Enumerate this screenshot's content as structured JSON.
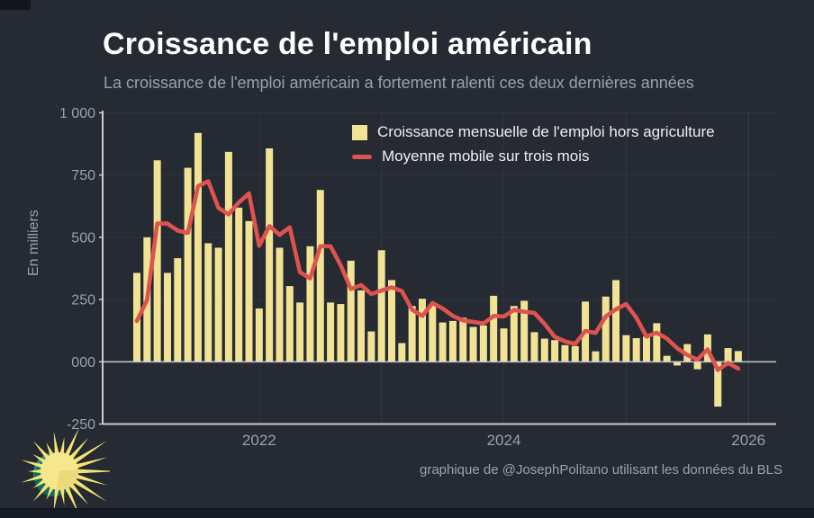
{
  "header": {
    "title": "Croissance de l'emploi américain",
    "subtitle": "La croissance de l'emploi américain a fortement ralenti ces deux dernières années"
  },
  "legend": {
    "bar_label": "Croissance mensuelle de l'emploi hors agriculture",
    "line_label": "Moyenne mobile sur trois mois"
  },
  "footer": {
    "credit": "graphique de @JosephPolitano utilisant les données du BLS"
  },
  "colors": {
    "background": "#252a33",
    "bar": "#f2e394",
    "line": "#df534f",
    "axis": "#c9ccd1",
    "zero_line": "#c9ccd1",
    "gridline": "#2f3440",
    "gridline_2026": "#3a404d",
    "tick_text": "#99a1ad",
    "title_text": "#ffffff",
    "subtitle_text": "#9ba1ac",
    "sun_yellow": "#f6e78c",
    "sun_ray": "#f4e372",
    "sun_shade": "#ebd678",
    "sun_teal": "#1b9185"
  },
  "icons": {
    "logo": "sun-logo"
  },
  "chart_data": {
    "type": "bar",
    "overlay": "line",
    "y_axis_label": "En milliers",
    "ylim": [
      -250,
      1000
    ],
    "y_ticks": [
      {
        "value": 1000,
        "label": "1 000"
      },
      {
        "value": 750,
        "label": "750"
      },
      {
        "value": 500,
        "label": "500"
      },
      {
        "value": 250,
        "label": "250"
      },
      {
        "value": 0,
        "label": "000"
      },
      {
        "value": -250,
        "label": "-250"
      }
    ],
    "x_ticks": [
      {
        "month_index": 12,
        "label": "2022"
      },
      {
        "month_index": 36,
        "label": "2024"
      },
      {
        "month_index": 60,
        "label": "2026"
      }
    ],
    "year_gridline_month_indices": [
      12,
      24,
      36,
      48,
      60
    ],
    "x": [
      "2021-01",
      "2021-02",
      "2021-03",
      "2021-04",
      "2021-05",
      "2021-06",
      "2021-07",
      "2021-08",
      "2021-09",
      "2021-10",
      "2021-11",
      "2021-12",
      "2022-01",
      "2022-02",
      "2022-03",
      "2022-04",
      "2022-05",
      "2022-06",
      "2022-07",
      "2022-08",
      "2022-09",
      "2022-10",
      "2022-11",
      "2022-12",
      "2023-01",
      "2023-02",
      "2023-03",
      "2023-04",
      "2023-05",
      "2023-06",
      "2023-07",
      "2023-08",
      "2023-09",
      "2023-10",
      "2023-11",
      "2023-12",
      "2024-01",
      "2024-02",
      "2024-03",
      "2024-04",
      "2024-05",
      "2024-06",
      "2024-07",
      "2024-08",
      "2024-09",
      "2024-10",
      "2024-11",
      "2024-12",
      "2025-01",
      "2025-02",
      "2025-03",
      "2025-04",
      "2025-05",
      "2025-06",
      "2025-07",
      "2025-08",
      "2025-09",
      "2025-10",
      "2025-11",
      "2025-12"
    ],
    "series": [
      {
        "name": "Croissance mensuelle de l'emploi hors agriculture",
        "type": "bar",
        "values": [
          357,
          500,
          809,
          357,
          416,
          779,
          919,
          476,
          458,
          843,
          619,
          565,
          214,
          857,
          458,
          304,
          238,
          464,
          690,
          238,
          232,
          406,
          287,
          122,
          448,
          328,
          75,
          224,
          253,
          230,
          158,
          164,
          177,
          140,
          146,
          265,
          134,
          224,
          245,
          119,
          93,
          87,
          67,
          63,
          242,
          42,
          262,
          328,
          107,
          95,
          101,
          155,
          24,
          -15,
          71,
          -30,
          110,
          -180,
          55,
          43
        ]
      },
      {
        "name": "Moyenne mobile sur trois mois",
        "type": "line",
        "values": [
          164,
          247,
          555,
          555,
          527,
          517,
          705,
          725,
          618,
          592,
          640,
          676,
          466,
          545,
          510,
          540,
          360,
          335,
          464,
          464,
          387,
          292,
          308,
          272,
          286,
          299,
          284,
          209,
          184,
          236,
          214,
          184,
          166,
          160,
          154,
          184,
          182,
          208,
          201,
          196,
          152,
          100,
          82,
          72,
          124,
          116,
          182,
          211,
          232,
          177,
          101,
          117,
          93,
          55,
          27,
          9,
          50,
          -33,
          -5,
          -27
        ]
      }
    ]
  }
}
